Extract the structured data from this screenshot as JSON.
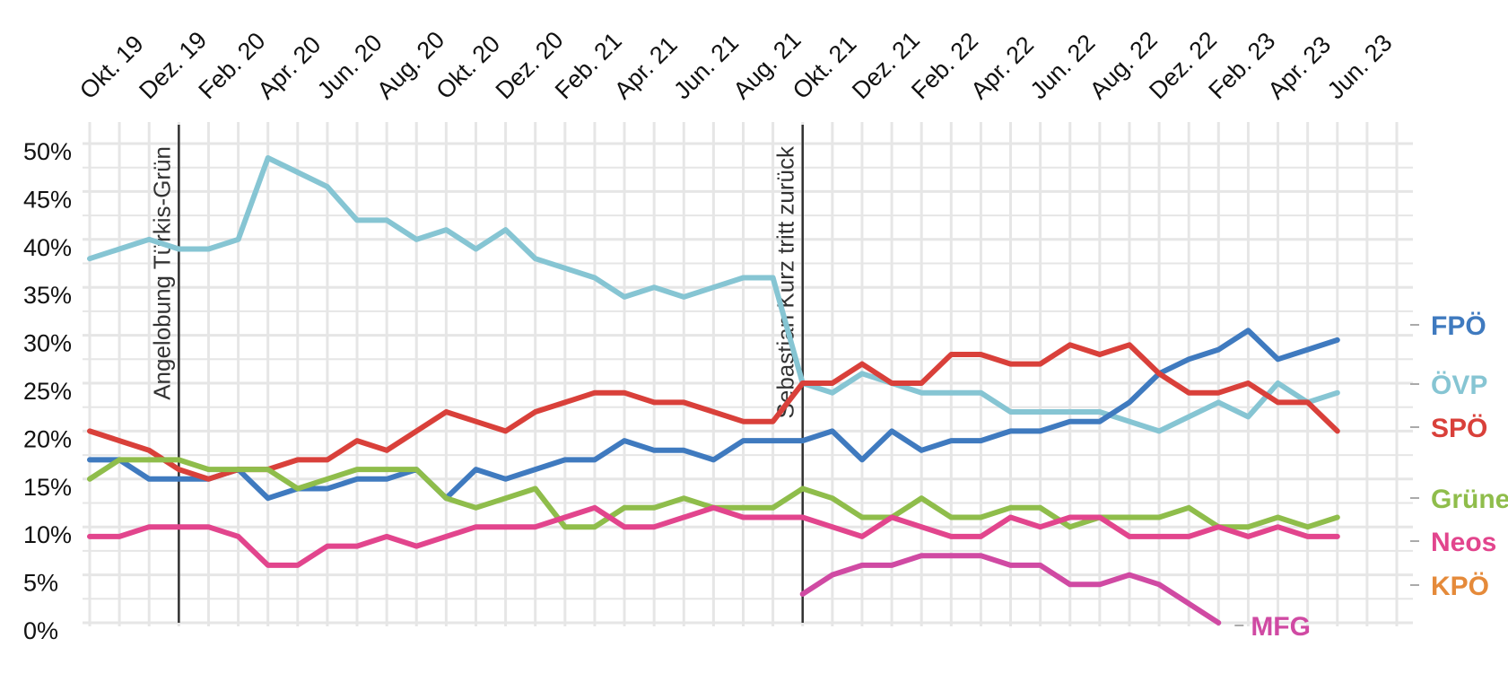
{
  "chart_data": {
    "type": "line",
    "title": "",
    "xlabel": "",
    "ylabel": "",
    "ylim": [
      0,
      50
    ],
    "y_ticks": [
      {
        "value": 0,
        "label": "0%"
      },
      {
        "value": 5,
        "label": "5%"
      },
      {
        "value": 10,
        "label": "10%"
      },
      {
        "value": 15,
        "label": "15%"
      },
      {
        "value": 20,
        "label": "20%"
      },
      {
        "value": 25,
        "label": "25%"
      },
      {
        "value": 30,
        "label": "30%"
      },
      {
        "value": 35,
        "label": "35%"
      },
      {
        "value": 40,
        "label": "40%"
      },
      {
        "value": 45,
        "label": "45%"
      },
      {
        "value": 50,
        "label": "50%"
      }
    ],
    "x_count": 45,
    "x_ticks": [
      {
        "index": 0,
        "label": "Okt. 19"
      },
      {
        "index": 2,
        "label": "Dez. 19"
      },
      {
        "index": 4,
        "label": "Feb. 20"
      },
      {
        "index": 6,
        "label": "Apr. 20"
      },
      {
        "index": 8,
        "label": "Jun. 20"
      },
      {
        "index": 10,
        "label": "Aug. 20"
      },
      {
        "index": 12,
        "label": "Okt. 20"
      },
      {
        "index": 14,
        "label": "Dez. 20"
      },
      {
        "index": 16,
        "label": "Feb. 21"
      },
      {
        "index": 18,
        "label": "Apr. 21"
      },
      {
        "index": 20,
        "label": "Jun. 21"
      },
      {
        "index": 22,
        "label": "Aug. 21"
      },
      {
        "index": 24,
        "label": "Okt. 21"
      },
      {
        "index": 26,
        "label": "Dez. 21"
      },
      {
        "index": 28,
        "label": "Feb. 22"
      },
      {
        "index": 30,
        "label": "Apr. 22"
      },
      {
        "index": 32,
        "label": "Jun. 22"
      },
      {
        "index": 34,
        "label": "Aug. 22"
      },
      {
        "index": 36,
        "label": "Dez. 22"
      },
      {
        "index": 38,
        "label": "Feb. 23"
      },
      {
        "index": 40,
        "label": "Apr. 23"
      },
      {
        "index": 42,
        "label": "Jun. 23"
      }
    ],
    "events": [
      {
        "index": 3,
        "label": "Angelobung Türkis-Grün"
      },
      {
        "index": 24,
        "label": "Sebastian Kurz tritt zurück"
      }
    ],
    "series": [
      {
        "name": "ÖVP",
        "color": "#86c5d3",
        "start": 0,
        "values": [
          38,
          39,
          40,
          39,
          39,
          40,
          48.5,
          47,
          45.5,
          42,
          42,
          40,
          41,
          39,
          41,
          38,
          37,
          36,
          34,
          35,
          34,
          35,
          36,
          36,
          25,
          24,
          26,
          25,
          24,
          24,
          24,
          22,
          22,
          22,
          22,
          21,
          20,
          21.5,
          23,
          21.5,
          25,
          23,
          24
        ]
      },
      {
        "name": "FPÖ",
        "color": "#3f7abf",
        "start": 0,
        "values": [
          17,
          17,
          15,
          15,
          15,
          16,
          13,
          14,
          14,
          15,
          15,
          16,
          13,
          16,
          15,
          16,
          17,
          17,
          19,
          18,
          18,
          17,
          19,
          19,
          19,
          20,
          17,
          20,
          18,
          19,
          19,
          20,
          20,
          21,
          21,
          23,
          26,
          27.5,
          28.5,
          30.5,
          27.5,
          28.5,
          29.5
        ]
      },
      {
        "name": "SPÖ",
        "color": "#d9403a",
        "start": 0,
        "values": [
          20,
          19,
          18,
          16,
          15,
          16,
          16,
          17,
          17,
          19,
          18,
          20,
          22,
          21,
          20,
          22,
          23,
          24,
          24,
          23,
          23,
          22,
          21,
          21,
          25,
          25,
          27,
          25,
          25,
          28,
          28,
          27,
          27,
          29,
          28,
          29,
          26,
          24,
          24,
          25,
          23,
          23,
          20
        ]
      },
      {
        "name": "Grüne",
        "color": "#8fbd4b",
        "start": 0,
        "values": [
          15,
          17,
          17,
          17,
          16,
          16,
          16,
          14,
          15,
          16,
          16,
          16,
          13,
          12,
          13,
          14,
          10,
          10,
          12,
          12,
          13,
          12,
          12,
          12,
          14,
          13,
          11,
          11,
          13,
          11,
          11,
          12,
          12,
          10,
          11,
          11,
          11,
          12,
          10,
          10,
          11,
          10,
          11
        ]
      },
      {
        "name": "Neos",
        "color": "#e2458d",
        "start": 0,
        "values": [
          9,
          9,
          10,
          10,
          10,
          9,
          6,
          6,
          8,
          8,
          9,
          8,
          9,
          10,
          10,
          10,
          11,
          12,
          10,
          10,
          11,
          12,
          11,
          11,
          11,
          10,
          9,
          11,
          10,
          9,
          9,
          11,
          10,
          11,
          11,
          9,
          9,
          9,
          10,
          9,
          10,
          9,
          9
        ]
      },
      {
        "name": "MFG",
        "color": "#d04aa3",
        "start": 24,
        "values": [
          3,
          5,
          6,
          6,
          7,
          7,
          7,
          6,
          6,
          4,
          4,
          5,
          4,
          2,
          0
        ]
      }
    ],
    "end_labels": [
      {
        "name": "FPÖ",
        "color": "#3f7abf"
      },
      {
        "name": "ÖVP",
        "color": "#86c5d3"
      },
      {
        "name": "SPÖ",
        "color": "#d9403a"
      },
      {
        "name": "Grüne",
        "color": "#8fbd4b"
      },
      {
        "name": "Neos",
        "color": "#e2458d"
      },
      {
        "name": "KPÖ",
        "color": "#e58a3a"
      },
      {
        "name": "MFG",
        "color": "#d04aa3"
      }
    ]
  }
}
